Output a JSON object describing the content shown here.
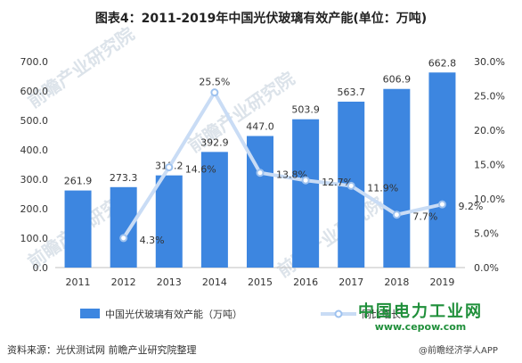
{
  "chart_data": {
    "type": "bar",
    "title": "图表4：2011-2019年中国光伏玻璃有效产能(单位：万吨)",
    "categories": [
      "2011",
      "2012",
      "2013",
      "2014",
      "2015",
      "2016",
      "2017",
      "2018",
      "2019"
    ],
    "series": [
      {
        "name": "中国光伏玻璃有效产能（万吨）",
        "type": "bar",
        "axis": "left",
        "values": [
          261.9,
          273.3,
          313.2,
          392.9,
          447.0,
          503.9,
          563.7,
          606.9,
          662.8
        ],
        "labels": [
          "261.9",
          "273.3",
          "313.2",
          "392.9",
          "447.0",
          "503.9",
          "563.7",
          "606.9",
          "662.8"
        ]
      },
      {
        "name": "同比增长",
        "type": "line",
        "axis": "right",
        "x": [
          "2012",
          "2013",
          "2014",
          "2015",
          "2016",
          "2017",
          "2018",
          "2019"
        ],
        "values": [
          4.3,
          14.6,
          25.5,
          13.8,
          12.7,
          11.9,
          7.7,
          9.2
        ],
        "labels": [
          "4.3%",
          "14.6%",
          "25.5%",
          "13.8%",
          "12.7%",
          "11.9%",
          "7.7%",
          "9.2%"
        ]
      }
    ],
    "ylim": [
      0,
      700
    ],
    "y2lim": [
      0,
      30
    ],
    "yticks": [
      "0.0",
      "100.0",
      "200.0",
      "300.0",
      "400.0",
      "500.0",
      "600.0",
      "700.0"
    ],
    "y2ticks": [
      "0.0%",
      "5.0%",
      "10.0%",
      "15.0%",
      "20.0%",
      "25.0%",
      "30.0%"
    ],
    "grid": false,
    "legend_position": "bottom",
    "colors": {
      "bar": "#3d86e0",
      "line": "#c9dcf5",
      "marker": "#9ec2ef"
    }
  },
  "source": "资料来源：光伏测试网 前瞻产业研究院整理",
  "watermark": {
    "brand": "中国电力工业网",
    "url": "www.cepow.com",
    "note": "@前瞻经济学人APP",
    "ghost": "前瞻产业研究院"
  }
}
